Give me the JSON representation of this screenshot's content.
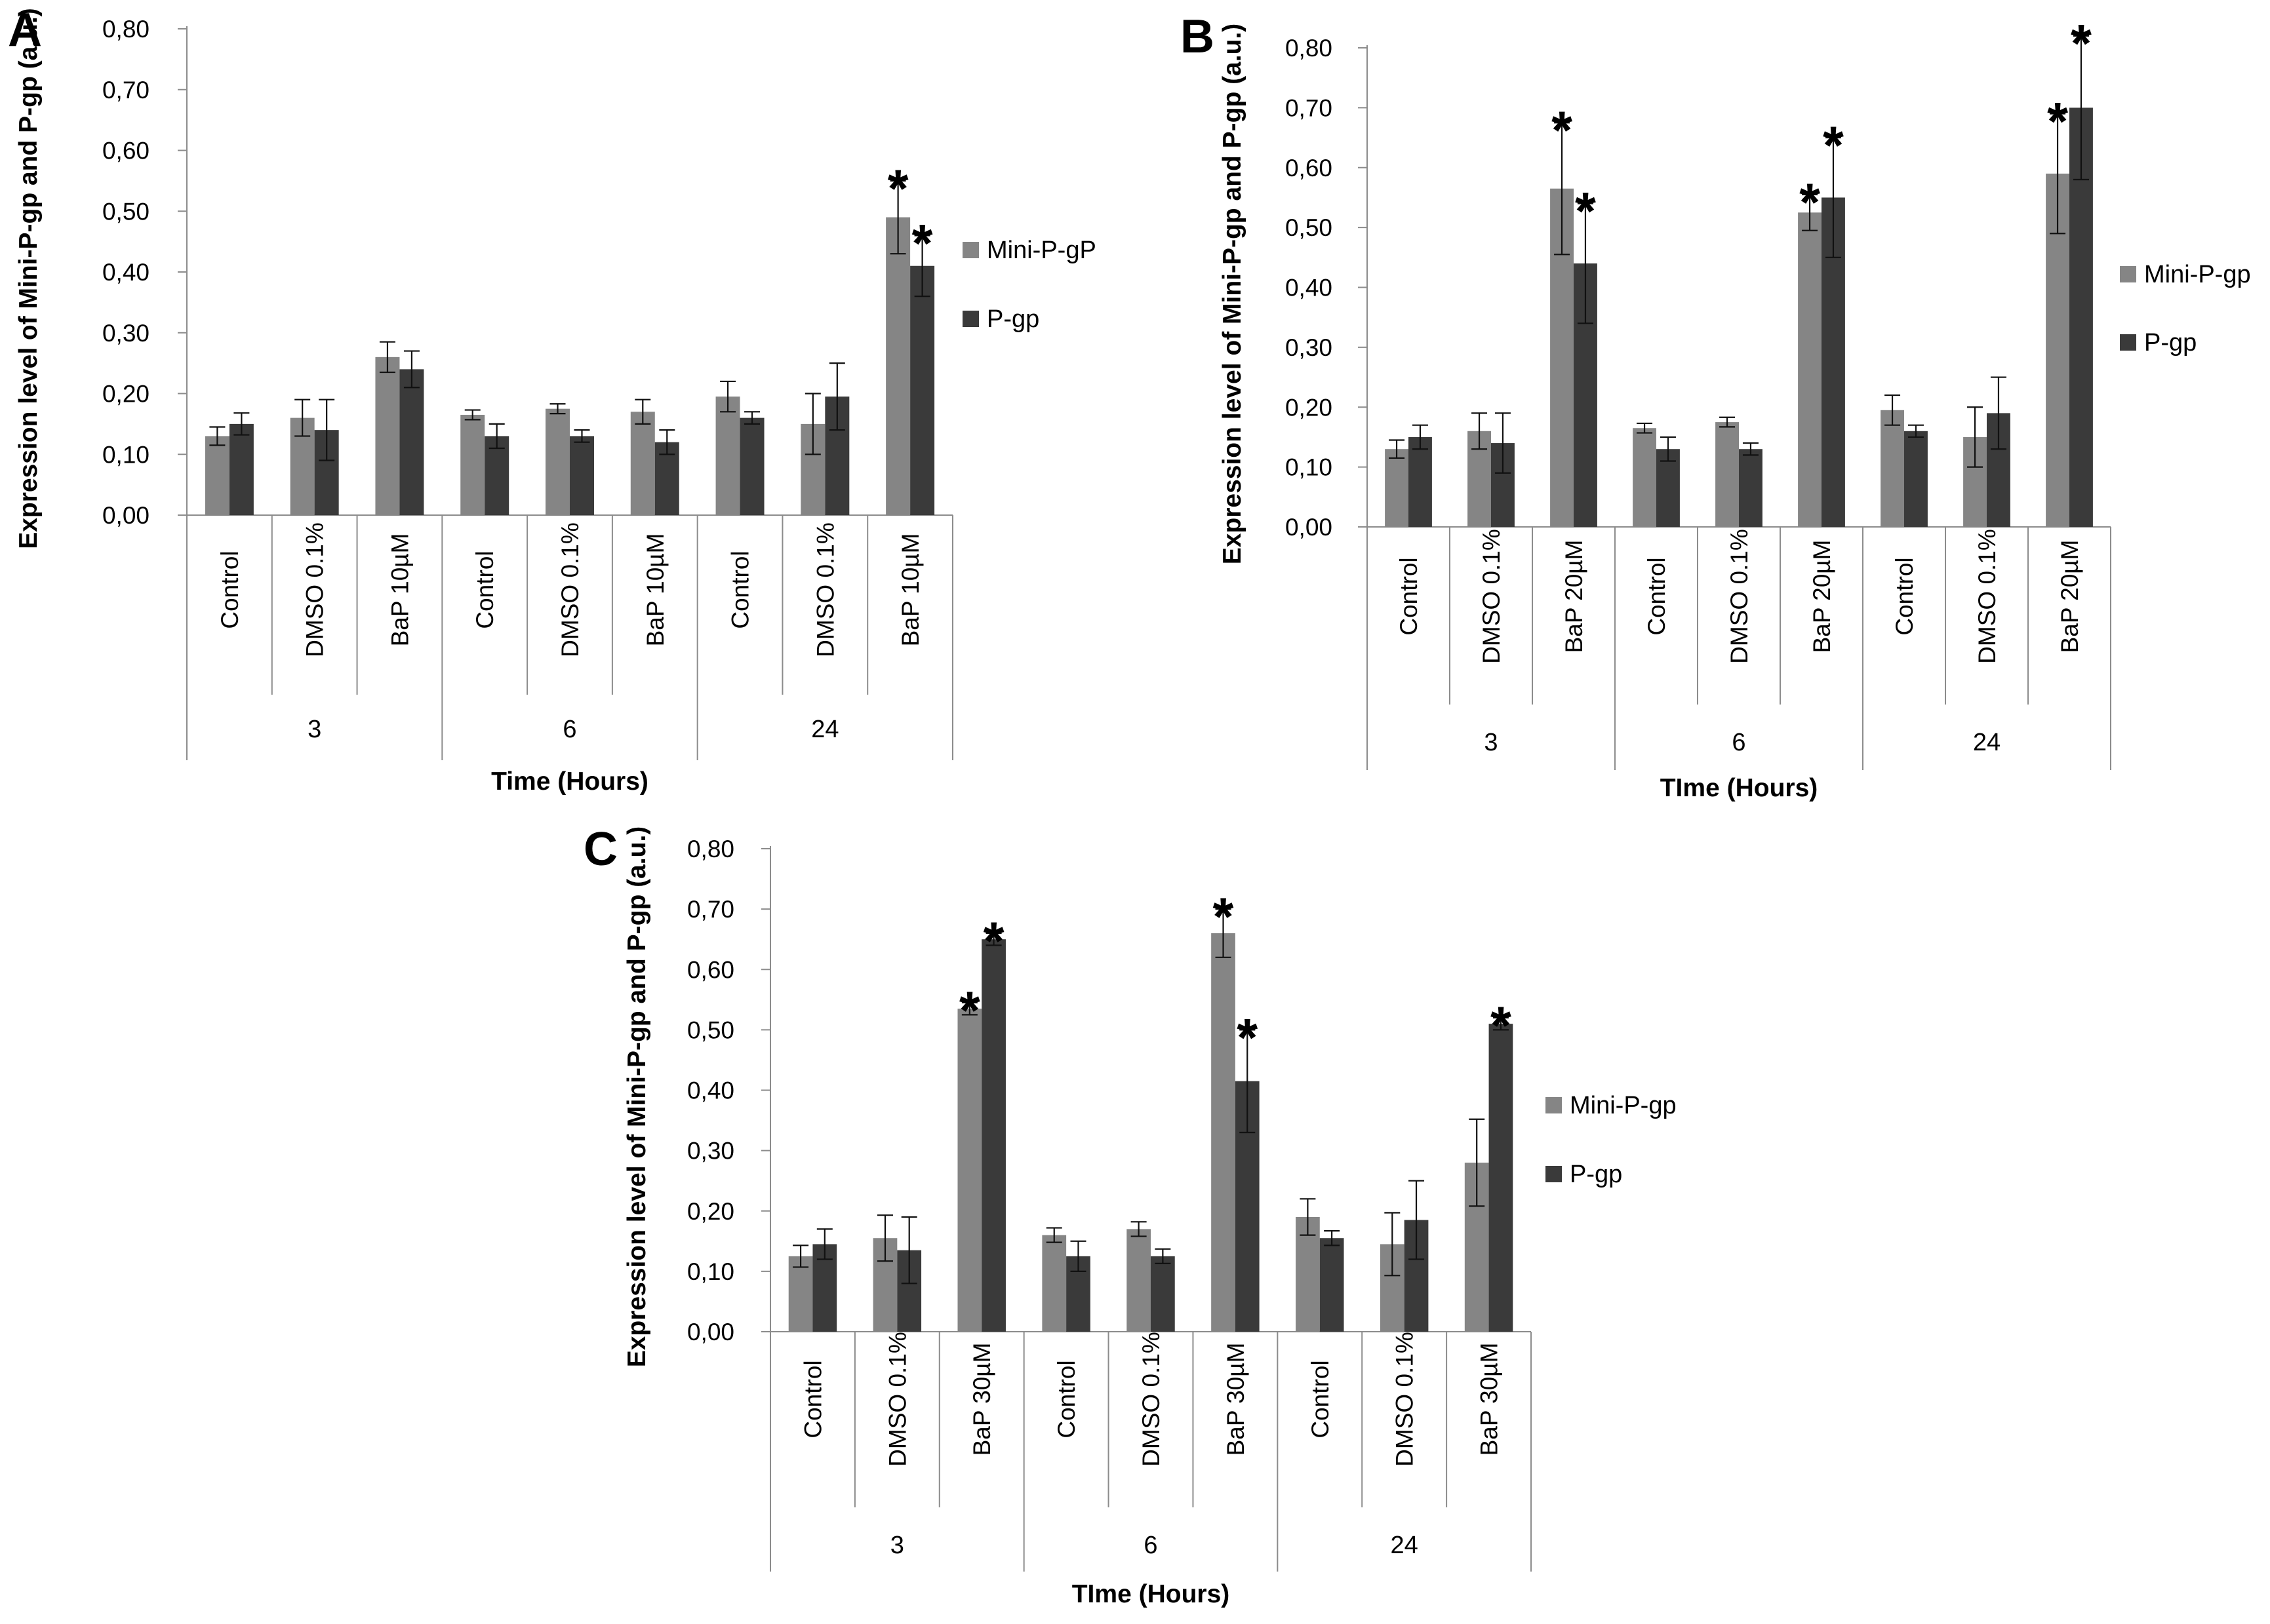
{
  "colors": {
    "series_light": "#858585",
    "series_dark": "#3a3a3a",
    "axis": "#8c8c8c",
    "text": "#000000"
  },
  "chart_data": [
    {
      "panel": "A",
      "type": "bar",
      "ylabel": "Expression level of Mini-P-gp and  P-gp (a.u.)",
      "xlabel": "Time (Hours)",
      "ylim": [
        0,
        0.8
      ],
      "yticks": [
        "0,00",
        "0,10",
        "0,20",
        "0,30",
        "0,40",
        "0,50",
        "0,60",
        "0,70",
        "0,80"
      ],
      "categories": [
        "Control",
        "DMSO 0.1%",
        "BaP 10µM",
        "Control",
        "DMSO 0.1%",
        "BaP 10µM",
        "Control",
        "DMSO 0.1%",
        "BaP 10µM"
      ],
      "groups": [
        "3",
        "6",
        "24"
      ],
      "legend": "right",
      "series": [
        {
          "name": "Mini-P-gP",
          "values": [
            0.13,
            0.16,
            0.26,
            0.165,
            0.175,
            0.17,
            0.195,
            0.15,
            0.49
          ],
          "errors": [
            0.015,
            0.03,
            0.025,
            0.008,
            0.008,
            0.02,
            0.025,
            0.05,
            0.06
          ],
          "significant": [
            false,
            false,
            false,
            false,
            false,
            false,
            false,
            false,
            true
          ]
        },
        {
          "name": "P-gp",
          "values": [
            0.15,
            0.14,
            0.24,
            0.13,
            0.13,
            0.12,
            0.16,
            0.195,
            0.41
          ],
          "errors": [
            0.018,
            0.05,
            0.03,
            0.02,
            0.01,
            0.02,
            0.01,
            0.055,
            0.05
          ],
          "significant": [
            false,
            false,
            false,
            false,
            false,
            false,
            false,
            false,
            true
          ]
        }
      ],
      "star": "*"
    },
    {
      "panel": "B",
      "type": "bar",
      "ylabel": "Expression level of Mini-P-gp and  P-gp (a.u.)",
      "xlabel": "TIme (Hours)",
      "ylim": [
        0,
        0.8
      ],
      "yticks": [
        "0,00",
        "0,10",
        "0,20",
        "0,30",
        "0,40",
        "0,50",
        "0,60",
        "0,70",
        "0,80"
      ],
      "categories": [
        "Control",
        "DMSO 0.1%",
        "BaP 20µM",
        "Control",
        "DMSO 0.1%",
        "BaP 20µM",
        "Control",
        "DMSO 0.1%",
        "BaP 20µM"
      ],
      "groups": [
        "3",
        "6",
        "24"
      ],
      "legend": "right",
      "series": [
        {
          "name": "Mini-P-gp",
          "values": [
            0.13,
            0.16,
            0.565,
            0.165,
            0.175,
            0.525,
            0.195,
            0.15,
            0.59
          ],
          "errors": [
            0.015,
            0.03,
            0.11,
            0.008,
            0.008,
            0.03,
            0.025,
            0.05,
            0.1
          ],
          "significant": [
            false,
            false,
            true,
            false,
            false,
            true,
            false,
            false,
            true
          ]
        },
        {
          "name": "P-gp",
          "values": [
            0.15,
            0.14,
            0.44,
            0.13,
            0.13,
            0.55,
            0.16,
            0.19,
            0.7
          ],
          "errors": [
            0.02,
            0.05,
            0.1,
            0.02,
            0.01,
            0.1,
            0.01,
            0.06,
            0.12
          ],
          "significant": [
            false,
            false,
            true,
            false,
            false,
            true,
            false,
            false,
            true
          ]
        }
      ],
      "star": "*"
    },
    {
      "panel": "C",
      "type": "bar",
      "ylabel": "Expression level of Mini-P-gp and  P-gp (a.u.)",
      "xlabel": "TIme (Hours)",
      "ylim": [
        0,
        0.8
      ],
      "yticks": [
        "0,00",
        "0,10",
        "0,20",
        "0,30",
        "0,40",
        "0,50",
        "0,60",
        "0,70",
        "0,80"
      ],
      "categories": [
        "Control",
        "DMSO 0.1%",
        "BaP 30µM",
        "Control",
        "DMSO 0.1%",
        "BaP 30µM",
        "Control",
        "DMSO 0.1%",
        "BaP 30µM"
      ],
      "groups": [
        "3",
        "6",
        "24"
      ],
      "legend": "right",
      "series": [
        {
          "name": "Mini-P-gp",
          "values": [
            0.125,
            0.155,
            0.535,
            0.16,
            0.17,
            0.66,
            0.19,
            0.145,
            0.28
          ],
          "errors": [
            0.018,
            0.038,
            0.01,
            0.012,
            0.012,
            0.04,
            0.03,
            0.052,
            0.072
          ],
          "significant": [
            false,
            false,
            true,
            false,
            false,
            true,
            false,
            false,
            false
          ]
        },
        {
          "name": "P-gp",
          "values": [
            0.145,
            0.135,
            0.65,
            0.125,
            0.125,
            0.415,
            0.155,
            0.185,
            0.51
          ],
          "errors": [
            0.025,
            0.055,
            0.01,
            0.025,
            0.012,
            0.085,
            0.012,
            0.065,
            0.01
          ],
          "significant": [
            false,
            false,
            true,
            false,
            false,
            true,
            false,
            false,
            true
          ]
        }
      ],
      "star": "*"
    }
  ]
}
